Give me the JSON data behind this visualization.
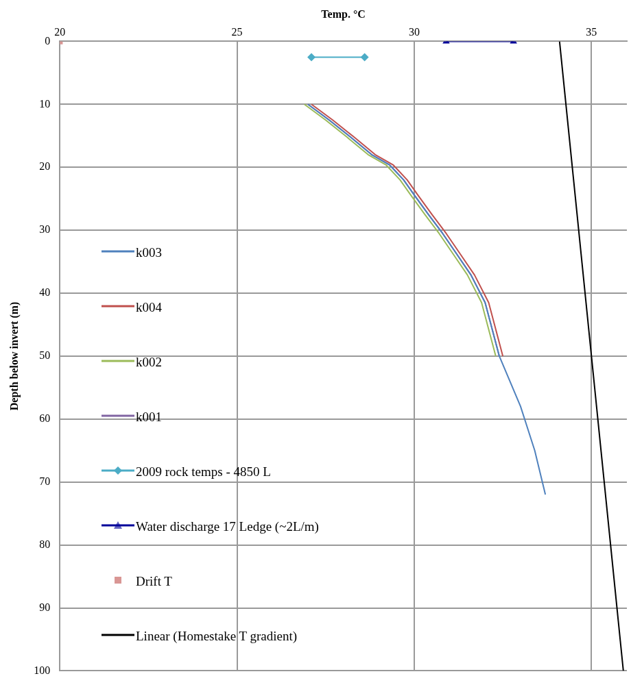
{
  "chart_data": {
    "type": "line",
    "xlabel": "Temp. °C",
    "ylabel": "Depth below invert (m)",
    "xlim": [
      20,
      36
    ],
    "xticks": [
      20,
      25,
      30,
      35
    ],
    "ylim": [
      100,
      0
    ],
    "yticks": [
      0,
      10,
      20,
      30,
      40,
      50,
      60,
      70,
      80,
      90,
      100
    ],
    "grid": true,
    "legend": "left",
    "series": [
      {
        "name": "k003",
        "color": "#4f81bd",
        "marker": "none",
        "x": [
          27.0,
          27.6,
          28.2,
          28.8,
          29.3,
          29.7,
          30.0,
          30.4,
          30.8,
          31.2,
          31.6,
          32.0,
          32.4,
          32.7,
          33.0,
          33.4,
          33.7
        ],
        "values": [
          10,
          12.5,
          15.2,
          18,
          19.6,
          22,
          24.4,
          27.5,
          30.5,
          33.8,
          37.1,
          41.5,
          50,
          54,
          58,
          65,
          72
        ]
      },
      {
        "name": "k004",
        "color": "#c0504d",
        "marker": "none",
        "x": [
          27.1,
          27.7,
          28.3,
          28.9,
          29.4,
          29.8,
          30.1,
          30.5,
          30.9,
          31.3,
          31.7,
          32.1,
          32.5
        ],
        "values": [
          10,
          12.5,
          15.2,
          18,
          19.6,
          22,
          24.4,
          27.5,
          30.5,
          33.8,
          37.1,
          41.5,
          50
        ]
      },
      {
        "name": "k002",
        "color": "#9bbb59",
        "marker": "none",
        "x": [
          26.9,
          27.5,
          28.1,
          28.7,
          29.2,
          29.6,
          29.9,
          30.3,
          30.7,
          31.1,
          31.5,
          31.9,
          32.3
        ],
        "values": [
          10,
          12.5,
          15.2,
          18,
          19.6,
          22,
          24.4,
          27.5,
          30.5,
          33.8,
          37.1,
          41.5,
          50
        ]
      },
      {
        "name": "k001",
        "color": "#8064a2",
        "marker": "none",
        "x": [
          27.0,
          27.6,
          28.2,
          28.8,
          29.3,
          29.7,
          30.0,
          30.4,
          30.8,
          31.2,
          31.6,
          32.0,
          32.4
        ],
        "values": [
          10,
          12.5,
          15.2,
          18,
          19.6,
          22,
          24.4,
          27.5,
          30.5,
          33.8,
          37.1,
          41.5,
          50
        ]
      },
      {
        "name": "2009 rock temps - 4850 L",
        "color": "#4bacc6",
        "marker": "diamond",
        "x": [
          27.1,
          28.6
        ],
        "values": [
          2.5,
          2.5
        ]
      },
      {
        "name": "Water discharge 17 Ledge (~2L/m)",
        "color": "#000099",
        "marker": "triangle",
        "x": [
          30.9,
          32.8
        ],
        "values": [
          0,
          0
        ]
      },
      {
        "name": "Drift T",
        "color": "#d99694",
        "type": "scatter",
        "marker": "square",
        "x": [
          20
        ],
        "values": [
          0
        ]
      },
      {
        "name": "Linear (Homestake T gradient)",
        "color": "#000000",
        "marker": "none",
        "x": [
          34.1,
          35.9
        ],
        "values": [
          0,
          100
        ]
      }
    ]
  }
}
